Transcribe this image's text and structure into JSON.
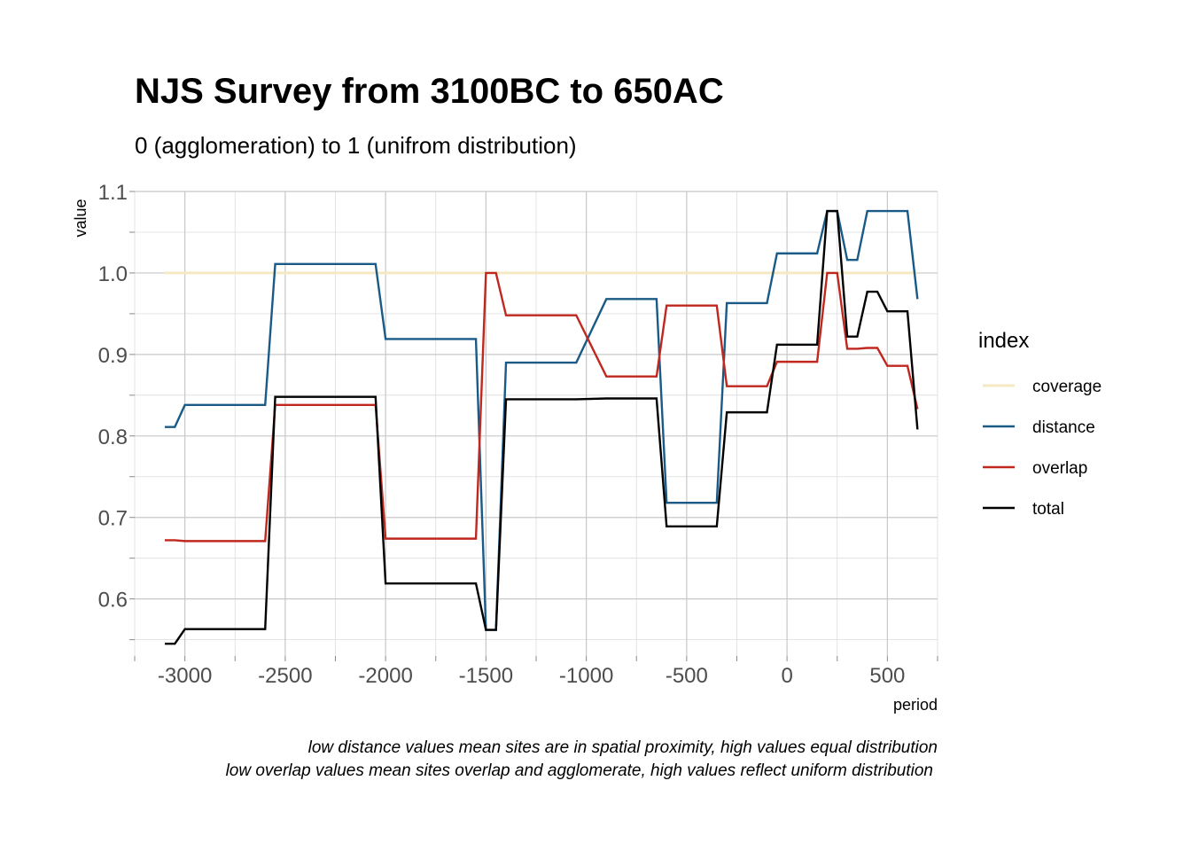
{
  "chart_data": {
    "type": "line",
    "title": "NJS Survey from 3100BC to 650AC",
    "subtitle": "0 (agglomeration) to 1 (unifrom distribution)",
    "xlabel": "period",
    "ylabel": "value",
    "xlim": [
      -3250,
      750
    ],
    "ylim": [
      0.53,
      1.1
    ],
    "x_ticks": [
      -3000,
      -2500,
      -2000,
      -1500,
      -1000,
      -500,
      0,
      500
    ],
    "x_tick_labels": [
      "-3000",
      "-2500",
      "-2000",
      "-1500",
      "-1000",
      "-500",
      "0",
      "500"
    ],
    "y_ticks": [
      0.6,
      0.7,
      0.8,
      0.9,
      1.0,
      1.1
    ],
    "y_tick_labels": [
      "0.6",
      "0.7",
      "0.8",
      "0.9",
      "1.0",
      "1.1"
    ],
    "grid": true,
    "legend_title": "index",
    "legend_position": "right",
    "captions": [
      "low distance values mean sites are in spatial proximity, high values equal distribution",
      "low overlap values mean sites  overlap and agglomerate, high values reflect uniform distribution "
    ],
    "series": [
      {
        "name": "coverage",
        "color": "#f5e9c4",
        "points": [
          [
            -3100,
            1.0
          ],
          [
            650,
            1.0
          ]
        ]
      },
      {
        "name": "distance",
        "color": "#1a5a86",
        "points": [
          [
            -3100,
            0.811
          ],
          [
            -3050,
            0.811
          ],
          [
            -3000,
            0.838
          ],
          [
            -2600,
            0.838
          ],
          [
            -2550,
            1.011
          ],
          [
            -2050,
            1.011
          ],
          [
            -2000,
            0.919
          ],
          [
            -1550,
            0.919
          ],
          [
            -1500,
            0.562
          ],
          [
            -1450,
            0.562
          ],
          [
            -1400,
            0.89
          ],
          [
            -1050,
            0.89
          ],
          [
            -900,
            0.968
          ],
          [
            -650,
            0.968
          ],
          [
            -600,
            0.718
          ],
          [
            -350,
            0.718
          ],
          [
            -300,
            0.963
          ],
          [
            -100,
            0.963
          ],
          [
            -50,
            1.024
          ],
          [
            150,
            1.024
          ],
          [
            200,
            1.076
          ],
          [
            250,
            1.076
          ],
          [
            300,
            1.016
          ],
          [
            350,
            1.016
          ],
          [
            400,
            1.076
          ],
          [
            600,
            1.076
          ],
          [
            650,
            0.968
          ]
        ]
      },
      {
        "name": "overlap",
        "color": "#c0281f",
        "points": [
          [
            -3100,
            0.672
          ],
          [
            -3050,
            0.672
          ],
          [
            -3000,
            0.671
          ],
          [
            -2600,
            0.671
          ],
          [
            -2550,
            0.838
          ],
          [
            -2050,
            0.838
          ],
          [
            -2000,
            0.674
          ],
          [
            -1550,
            0.674
          ],
          [
            -1500,
            1.0
          ],
          [
            -1450,
            1.0
          ],
          [
            -1400,
            0.948
          ],
          [
            -1050,
            0.948
          ],
          [
            -900,
            0.873
          ],
          [
            -650,
            0.873
          ],
          [
            -600,
            0.96
          ],
          [
            -350,
            0.96
          ],
          [
            -300,
            0.861
          ],
          [
            -100,
            0.861
          ],
          [
            -50,
            0.891
          ],
          [
            150,
            0.891
          ],
          [
            200,
            1.0
          ],
          [
            250,
            1.0
          ],
          [
            300,
            0.907
          ],
          [
            350,
            0.907
          ],
          [
            400,
            0.908
          ],
          [
            450,
            0.908
          ],
          [
            500,
            0.886
          ],
          [
            600,
            0.886
          ],
          [
            650,
            0.833
          ]
        ]
      },
      {
        "name": "total",
        "color": "#000000",
        "points": [
          [
            -3100,
            0.545
          ],
          [
            -3050,
            0.545
          ],
          [
            -3000,
            0.563
          ],
          [
            -2600,
            0.563
          ],
          [
            -2550,
            0.848
          ],
          [
            -2050,
            0.848
          ],
          [
            -2000,
            0.619
          ],
          [
            -1550,
            0.619
          ],
          [
            -1500,
            0.562
          ],
          [
            -1450,
            0.562
          ],
          [
            -1400,
            0.845
          ],
          [
            -1050,
            0.845
          ],
          [
            -900,
            0.846
          ],
          [
            -650,
            0.846
          ],
          [
            -600,
            0.689
          ],
          [
            -350,
            0.689
          ],
          [
            -300,
            0.829
          ],
          [
            -100,
            0.829
          ],
          [
            -50,
            0.912
          ],
          [
            150,
            0.912
          ],
          [
            200,
            1.076
          ],
          [
            250,
            1.076
          ],
          [
            300,
            0.922
          ],
          [
            350,
            0.922
          ],
          [
            400,
            0.977
          ],
          [
            450,
            0.977
          ],
          [
            500,
            0.953
          ],
          [
            600,
            0.953
          ],
          [
            650,
            0.808
          ]
        ]
      }
    ]
  }
}
